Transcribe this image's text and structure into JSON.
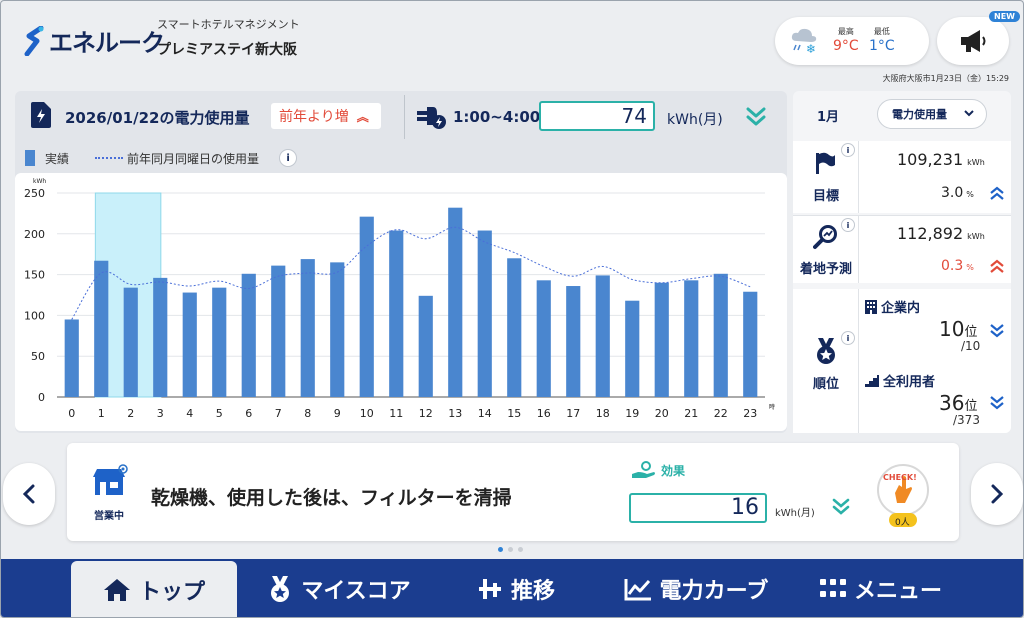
{
  "header": {
    "brand_name": "エネルーク",
    "brand_sub": "スマートホテルマネジメント",
    "hotel_name": "プレミアステイ新大阪",
    "weather": {
      "high_label": "最高",
      "high_value": "9°C",
      "low_label": "最低",
      "low_value": "1°C",
      "icon": "rain-snow-icon"
    },
    "new_badge": "NEW",
    "datetime": "大阪府大阪市1月23日（金）15:29"
  },
  "usage": {
    "title": "2026/01/22の電力使用量",
    "compare": "前年より増",
    "time_range": "1:00~4:00",
    "kwh_value": "74",
    "kwh_unit": "kWh(月)",
    "legend_actual": "実績",
    "legend_prev": "前年同月同曜日の使用量"
  },
  "chart_data": {
    "type": "bar",
    "ylabel": "kWh",
    "xlabel_suffix": "時",
    "ylim": [
      0,
      250
    ],
    "yticks": [
      0,
      50,
      100,
      150,
      200,
      250
    ],
    "categories": [
      "0",
      "1",
      "2",
      "3",
      "4",
      "5",
      "6",
      "7",
      "8",
      "9",
      "10",
      "11",
      "12",
      "13",
      "14",
      "15",
      "16",
      "17",
      "18",
      "19",
      "20",
      "21",
      "22",
      "23"
    ],
    "series": [
      {
        "name": "実績",
        "type": "bar",
        "color": "#4a86cf",
        "values": [
          95,
          167,
          134,
          146,
          128,
          134,
          151,
          161,
          169,
          165,
          221,
          204,
          124,
          232,
          204,
          170,
          143,
          136,
          149,
          118,
          140,
          143,
          151,
          129
        ]
      },
      {
        "name": "前年同月同曜日の使用量",
        "type": "line",
        "style": "dotted",
        "color": "#4a6fd8",
        "values": [
          95,
          152,
          138,
          141,
          136,
          142,
          133,
          148,
          152,
          153,
          185,
          205,
          194,
          208,
          190,
          177,
          160,
          148,
          160,
          144,
          140,
          145,
          148,
          135
        ]
      }
    ],
    "highlight_range": [
      1,
      3
    ],
    "grid": true
  },
  "stats": {
    "month": "1月",
    "metric_select": "電力使用量",
    "target_label": "目標",
    "target_value": "109,231",
    "target_unit": "kWh",
    "target_pct": "3.0",
    "forecast_label": "着地予測",
    "forecast_value": "112,892",
    "forecast_unit": "kWh",
    "forecast_pct": "0.3",
    "pct_unit": "%",
    "rank_label": "順位",
    "rank_company_label": "企業内",
    "rank_company": "10",
    "rank_company_total": "/10",
    "rank_all_label": "全利用者",
    "rank_all": "36",
    "rank_all_total": "/373",
    "rank_unit": "位"
  },
  "tip": {
    "status_label": "営業中",
    "text": "乾燥機、使用した後は、フィルターを清掃",
    "effect_label": "効果",
    "effect_value": "16",
    "effect_unit": "kWh(月)",
    "check_label": "CHECK!",
    "check_count": "0人"
  },
  "nav": {
    "top": "トップ",
    "myscore": "マイスコア",
    "trend": "推移",
    "curve": "電力カーブ",
    "menu": "メニュー"
  },
  "colors": {
    "navy": "#14285a",
    "nav_bg": "#1b3d8f",
    "teal": "#2bb1a8",
    "red": "#e24b3a",
    "blue": "#2a72c9"
  }
}
